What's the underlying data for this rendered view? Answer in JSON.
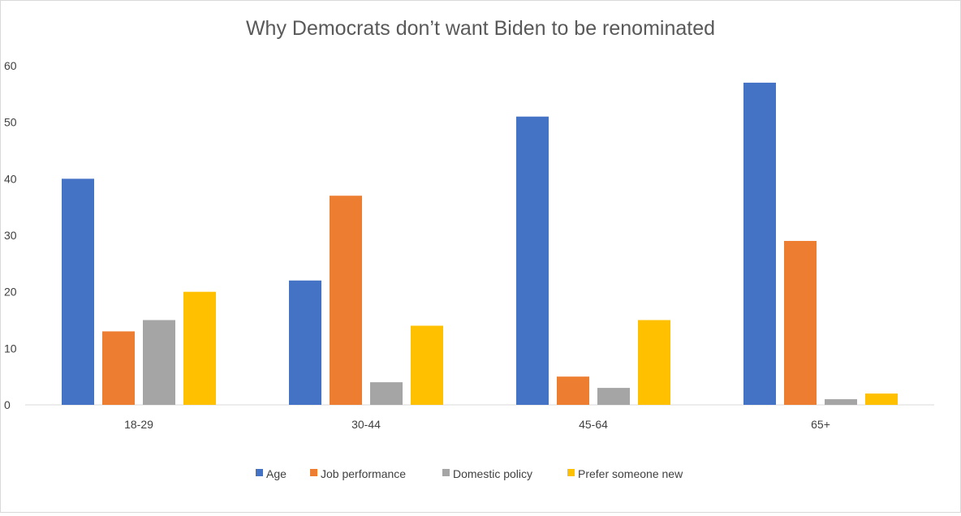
{
  "chart_data": {
    "type": "bar",
    "title": "Why Democrats don’t want Biden to be renominated",
    "xlabel": "",
    "ylabel": "",
    "categories": [
      "18-29",
      "30-44",
      "45-64",
      "65+"
    ],
    "series": [
      {
        "name": "Age",
        "color": "#4472C4",
        "values": [
          40,
          22,
          51,
          57
        ]
      },
      {
        "name": "Job performance",
        "color": "#ED7D31",
        "values": [
          13,
          37,
          5,
          29
        ]
      },
      {
        "name": "Domestic policy",
        "color": "#A5A5A5",
        "values": [
          15,
          4,
          3,
          1
        ]
      },
      {
        "name": "Prefer someone new",
        "color": "#FFC000",
        "values": [
          20,
          14,
          15,
          2
        ]
      }
    ],
    "ylim": [
      0,
      60
    ],
    "yticks": [
      0,
      10,
      20,
      30,
      40,
      50,
      60
    ],
    "grid": false,
    "legend_position": "bottom"
  },
  "colors": {
    "axis": "#d9d9d9",
    "text": "#404040",
    "title": "#595959"
  }
}
